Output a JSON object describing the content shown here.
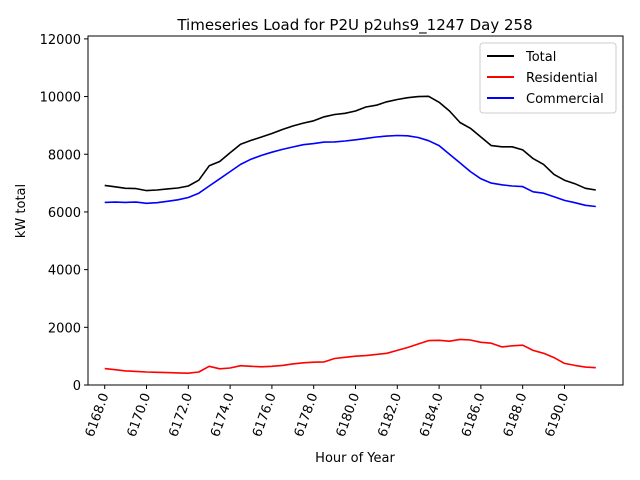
{
  "chart_data": {
    "type": "line",
    "title": "Timeseries Load for P2U p2uhs9_1247  Day 258",
    "xlabel": "Hour of Year",
    "ylabel": "kW total",
    "xlim": [
      6167.2,
      6192.8
    ],
    "ylim": [
      0,
      12100
    ],
    "x_ticks": [
      6168,
      6170,
      6172,
      6174,
      6176,
      6178,
      6180,
      6182,
      6184,
      6186,
      6188,
      6190
    ],
    "x_tick_labels": [
      "6168.0",
      "6170.0",
      "6172.0",
      "6174.0",
      "6176.0",
      "6178.0",
      "6180.0",
      "6182.0",
      "6184.0",
      "6186.0",
      "6188.0",
      "6190.0"
    ],
    "y_ticks": [
      0,
      2000,
      4000,
      6000,
      8000,
      10000,
      12000
    ],
    "y_tick_labels": [
      "0",
      "2000",
      "4000",
      "6000",
      "8000",
      "10000",
      "12000"
    ],
    "legend_position": "upper-right",
    "x": [
      6168.0,
      6168.5,
      6169.0,
      6169.5,
      6170.0,
      6170.5,
      6171.0,
      6171.5,
      6172.0,
      6172.5,
      6173.0,
      6173.5,
      6174.0,
      6174.5,
      6175.0,
      6175.5,
      6176.0,
      6176.5,
      6177.0,
      6177.5,
      6178.0,
      6178.5,
      6179.0,
      6179.5,
      6180.0,
      6180.5,
      6181.0,
      6181.5,
      6182.0,
      6182.5,
      6183.0,
      6183.5,
      6184.0,
      6184.5,
      6185.0,
      6185.5,
      6186.0,
      6186.5,
      6187.0,
      6187.5,
      6188.0,
      6188.5,
      6189.0,
      6189.5,
      6190.0,
      6190.5,
      6191.0,
      6191.5
    ],
    "series": [
      {
        "name": "Total",
        "color": "#000000",
        "values": [
          6920,
          6870,
          6820,
          6810,
          6740,
          6760,
          6800,
          6830,
          6900,
          7100,
          7600,
          7750,
          8050,
          8350,
          8480,
          8600,
          8720,
          8860,
          8980,
          9080,
          9160,
          9300,
          9380,
          9420,
          9500,
          9640,
          9700,
          9820,
          9900,
          9960,
          10000,
          10010,
          9800,
          9500,
          9100,
          8900,
          8600,
          8300,
          8260,
          8260,
          8150,
          7850,
          7650,
          7300,
          7100,
          6980,
          6820,
          6760
        ]
      },
      {
        "name": "Residential",
        "color": "#ff0000",
        "values": [
          570,
          530,
          490,
          470,
          450,
          440,
          430,
          420,
          410,
          450,
          650,
          560,
          590,
          670,
          650,
          630,
          650,
          680,
          730,
          770,
          790,
          800,
          920,
          960,
          1000,
          1020,
          1060,
          1100,
          1200,
          1300,
          1420,
          1540,
          1550,
          1520,
          1580,
          1560,
          1480,
          1450,
          1320,
          1360,
          1380,
          1200,
          1100,
          950,
          750,
          680,
          620,
          600
        ]
      },
      {
        "name": "Commercial",
        "color": "#0000ff",
        "values": [
          6330,
          6340,
          6330,
          6340,
          6300,
          6320,
          6370,
          6420,
          6500,
          6650,
          6900,
          7150,
          7400,
          7650,
          7830,
          7960,
          8070,
          8170,
          8250,
          8330,
          8370,
          8420,
          8430,
          8460,
          8500,
          8550,
          8600,
          8630,
          8650,
          8640,
          8580,
          8470,
          8300,
          8000,
          7700,
          7400,
          7150,
          7000,
          6940,
          6900,
          6880,
          6700,
          6650,
          6530,
          6400,
          6320,
          6230,
          6190
        ]
      }
    ]
  }
}
